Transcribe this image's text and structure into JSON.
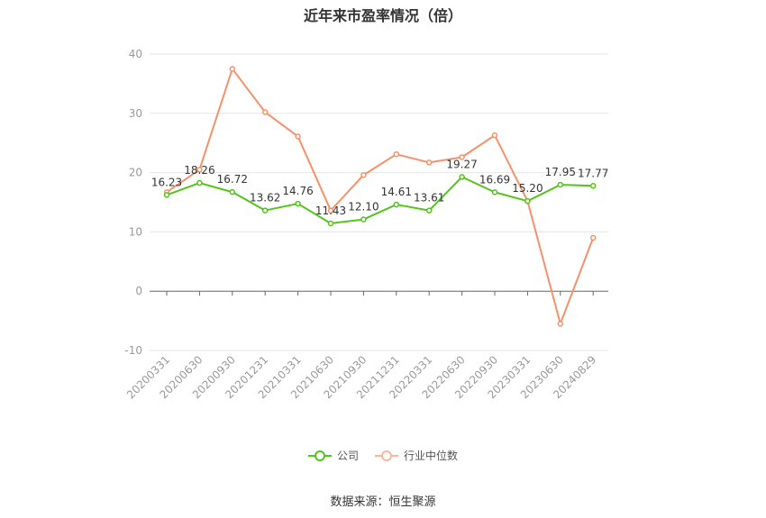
{
  "chart_data": {
    "type": "line",
    "title": "近年来市盈率情况（倍）",
    "categories": [
      "20200331",
      "20200630",
      "20200930",
      "20201231",
      "20210331",
      "20210630",
      "20210930",
      "20211231",
      "20220331",
      "20220630",
      "20220930",
      "20230331",
      "20230630",
      "20240829"
    ],
    "series": [
      {
        "name": "公司",
        "color": "#52c41a",
        "values": [
          16.23,
          18.26,
          16.72,
          13.62,
          14.76,
          11.43,
          12.1,
          14.61,
          13.61,
          19.27,
          16.69,
          15.2,
          17.95,
          17.77
        ],
        "labels": [
          "16.23",
          "18.26",
          "16.72",
          "13.62",
          "14.76",
          "11.43",
          "12.10",
          "14.61",
          "13.61",
          "19.27",
          "16.69",
          "15.20",
          "17.95",
          "17.77"
        ]
      },
      {
        "name": "行业中位数",
        "color": "#f4916a",
        "values": [
          16.7,
          20.5,
          37.5,
          30.2,
          26.1,
          13.6,
          19.6,
          23.1,
          21.7,
          22.6,
          26.3,
          15.2,
          -5.5,
          9.0
        ]
      }
    ],
    "yticks": [
      40,
      30,
      20,
      10,
      0,
      -10
    ],
    "ylim": [
      -10,
      40
    ],
    "grid": true,
    "legend_position": "bottom"
  },
  "source": "数据来源：恒生聚源"
}
